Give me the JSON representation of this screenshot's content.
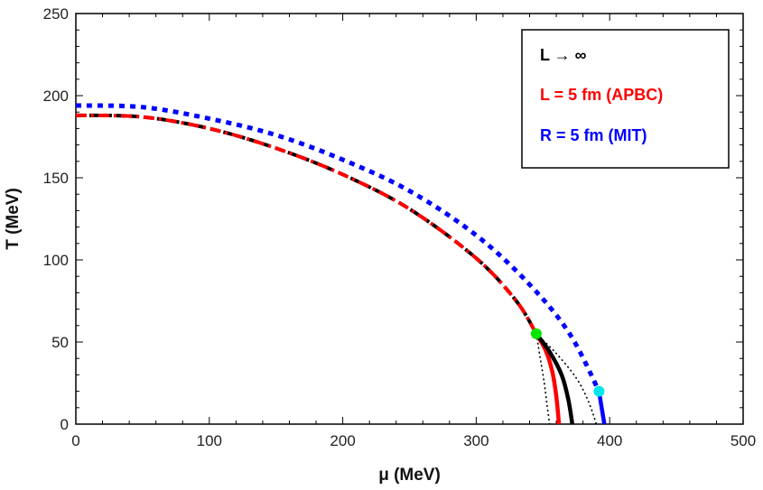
{
  "chart_data": {
    "type": "line",
    "xlabel": "μ (MeV)",
    "ylabel": "T (MeV)",
    "xlim": [
      0,
      500
    ],
    "ylim": [
      0,
      250
    ],
    "xticks": [
      0,
      100,
      200,
      300,
      400,
      500
    ],
    "yticks": [
      0,
      50,
      100,
      150,
      200,
      250
    ],
    "grid": false,
    "legend": {
      "placement": "top-right",
      "entries": [
        {
          "label": "L → ∞",
          "color": "#000000"
        },
        {
          "label": "L = 5 fm (APBC)",
          "color": "#ff0000"
        },
        {
          "label": "R = 5 fm (MIT)",
          "color": "#0000ff"
        }
      ]
    },
    "series": [
      {
        "name": "L → ∞ crossover",
        "color": "#000000",
        "style": "dashed",
        "x": [
          0,
          50,
          100,
          150,
          200,
          250,
          300,
          330,
          345
        ],
        "y": [
          188,
          187,
          180,
          168,
          152,
          131,
          101,
          75,
          55
        ]
      },
      {
        "name": "L = 5 fm (APBC) crossover",
        "color": "#ff0000",
        "style": "dashdot",
        "x": [
          0,
          50,
          100,
          150,
          200,
          250,
          300,
          330,
          345
        ],
        "y": [
          188,
          187,
          180,
          168,
          152,
          131,
          101,
          75,
          55
        ]
      },
      {
        "name": "R = 5 fm (MIT) crossover",
        "color": "#0000ff",
        "style": "dotted",
        "x": [
          0,
          50,
          100,
          150,
          200,
          250,
          300,
          340,
          370,
          392
        ],
        "y": [
          194,
          193,
          186,
          176,
          161,
          142,
          115,
          85,
          55,
          20
        ]
      },
      {
        "name": "L = 5 fm (APBC) first order",
        "color": "#ff0000",
        "style": "solid",
        "x": [
          345,
          352,
          357,
          360,
          362
        ],
        "y": [
          55,
          45,
          32,
          17,
          0
        ]
      },
      {
        "name": "L → ∞ first order",
        "color": "#000000",
        "style": "solid",
        "x": [
          345,
          355,
          364,
          369,
          372
        ],
        "y": [
          55,
          44,
          30,
          15,
          0
        ]
      },
      {
        "name": "L → ∞ spinodal inner",
        "color": "#000000",
        "style": "dotted-thin",
        "x": [
          345,
          348,
          351,
          353,
          355
        ],
        "y": [
          55,
          40,
          25,
          12,
          0
        ]
      },
      {
        "name": "L → ∞ spinodal outer",
        "color": "#000000",
        "style": "dotted-thin",
        "x": [
          345,
          360,
          375,
          384,
          390
        ],
        "y": [
          55,
          43,
          28,
          14,
          0
        ]
      },
      {
        "name": "R = 5 fm (MIT) first order",
        "color": "#0000ff",
        "style": "solid",
        "x": [
          392,
          394,
          396
        ],
        "y": [
          20,
          10,
          0
        ]
      }
    ],
    "points": [
      {
        "name": "critical-endpoint-L5",
        "x": 345,
        "y": 55,
        "color": "#00e600"
      },
      {
        "name": "critical-endpoint-R5",
        "x": 392,
        "y": 20,
        "color": "#00e5ee"
      }
    ]
  }
}
